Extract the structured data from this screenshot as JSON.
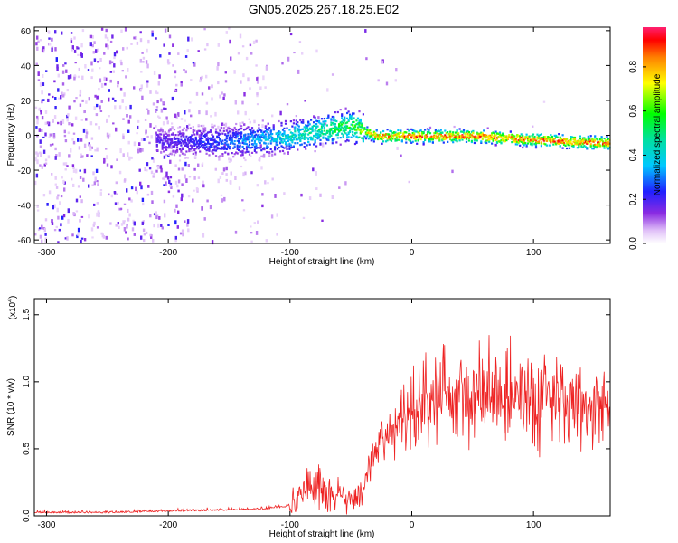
{
  "title": "GN05.2025.267.18.25.E02",
  "colors": {
    "series": "#ee2222",
    "axis": "#000000"
  },
  "chart_data": [
    {
      "type": "heatmap",
      "xlabel": "Height of straight line (km)",
      "ylabel": "Frequency (Hz)",
      "xlim": [
        -310,
        163
      ],
      "ylim": [
        -62,
        62
      ],
      "xticks": [
        -300,
        -200,
        -100,
        0,
        100
      ],
      "yticks": [
        60,
        40,
        20,
        0,
        -20,
        -40,
        -60
      ],
      "colorbar": {
        "label": "Normalized spectral amplitude",
        "range": [
          0,
          0.98
        ],
        "ticks": [
          "0.0",
          "0.2",
          "0.4",
          "0.6",
          "0.8"
        ],
        "colormap": "rainbow (white-violet-blue-cyan-green-yellow-red)"
      },
      "ridge": [
        {
          "x": -200,
          "y": -3,
          "amp": 0.2
        },
        {
          "x": -150,
          "y": -3,
          "amp": 0.3
        },
        {
          "x": -100,
          "y": 0,
          "amp": 0.45
        },
        {
          "x": -70,
          "y": 4,
          "amp": 0.55
        },
        {
          "x": -50,
          "y": 6,
          "amp": 0.6
        },
        {
          "x": -40,
          "y": 3,
          "amp": 0.7
        },
        {
          "x": -30,
          "y": 0,
          "amp": 0.85
        },
        {
          "x": 0,
          "y": 0,
          "amp": 0.9
        },
        {
          "x": 50,
          "y": 0,
          "amp": 0.9
        },
        {
          "x": 100,
          "y": -2,
          "amp": 0.9
        },
        {
          "x": 160,
          "y": -4,
          "amp": 0.9
        }
      ]
    },
    {
      "type": "line",
      "xlabel": "Height of straight line (km)",
      "ylabel": "SNR (10 * v/v)",
      "scale_note": "(x10",
      "scale_exp": "4",
      "scale_close": ")",
      "xlim": [
        -310,
        163
      ],
      "ylim": [
        0,
        1.62
      ],
      "xticks": [
        -300,
        -200,
        -100,
        0,
        100
      ],
      "yticks": [
        "0.0",
        "0.5",
        "1.0",
        "1.5"
      ],
      "series": [
        {
          "x": [
            -310,
            -250,
            -200,
            -150,
            -120,
            -100,
            -95,
            -85,
            -75,
            -65,
            -50,
            -42,
            -35,
            -30,
            -25,
            -10,
            0,
            10,
            20,
            30,
            40,
            50,
            60,
            70,
            80,
            90,
            100,
            110,
            120,
            130,
            140,
            150,
            163
          ],
          "values": [
            0.02,
            0.02,
            0.03,
            0.04,
            0.05,
            0.07,
            0.15,
            0.2,
            0.25,
            0.14,
            0.12,
            0.16,
            0.35,
            0.5,
            0.55,
            0.65,
            0.75,
            0.85,
            0.9,
            0.95,
            0.9,
            0.88,
            0.93,
            0.9,
            0.9,
            0.88,
            0.9,
            0.86,
            0.85,
            0.83,
            0.82,
            0.82,
            0.8
          ]
        }
      ]
    }
  ]
}
